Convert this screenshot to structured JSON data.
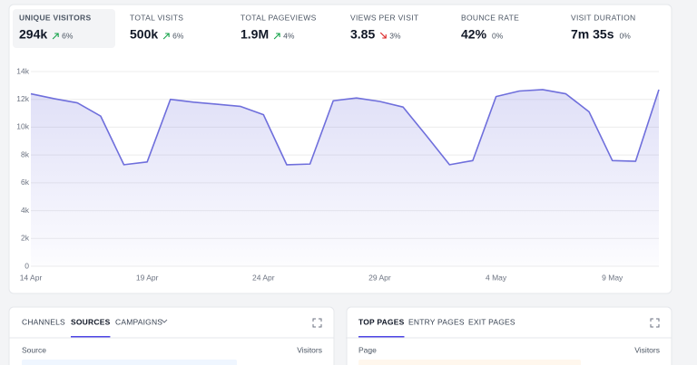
{
  "stats": [
    {
      "label": "UNIQUE VISITORS",
      "value": "294k",
      "change": "6%",
      "trend": "up"
    },
    {
      "label": "TOTAL VISITS",
      "value": "500k",
      "change": "6%",
      "trend": "up"
    },
    {
      "label": "TOTAL PAGEVIEWS",
      "value": "1.9M",
      "change": "4%",
      "trend": "up"
    },
    {
      "label": "VIEWS PER VISIT",
      "value": "3.85",
      "change": "3%",
      "trend": "down"
    },
    {
      "label": "BOUNCE RATE",
      "value": "42%",
      "change": "0%",
      "trend": "none"
    },
    {
      "label": "VISIT DURATION",
      "value": "7m 35s",
      "change": "0%",
      "trend": "none"
    }
  ],
  "chart_data": {
    "type": "line",
    "categories": [
      "14 Apr",
      null,
      null,
      null,
      null,
      "19 Apr",
      null,
      null,
      null,
      null,
      "24 Apr",
      null,
      null,
      null,
      null,
      "29 Apr",
      null,
      null,
      null,
      null,
      "4 May",
      null,
      null,
      null,
      null,
      "9 May",
      null,
      null
    ],
    "values": [
      12400,
      12050,
      11750,
      10800,
      7300,
      7500,
      12000,
      11800,
      11650,
      11500,
      10900,
      7300,
      7350,
      11900,
      12100,
      11850,
      11450,
      9400,
      7300,
      7600,
      12200,
      12600,
      12700,
      12400,
      11100,
      7600,
      7550,
      12700
    ],
    "color": "#6f6fdc",
    "fill": true,
    "ylim": [
      0,
      14000
    ],
    "yticks": [
      0,
      {
        "value": 2000,
        "label": "2k"
      },
      {
        "value": 4000,
        "label": "4k"
      },
      {
        "value": 6000,
        "label": "6k"
      },
      {
        "value": 8000,
        "label": "8k"
      },
      {
        "value": 10000,
        "label": "10k"
      },
      {
        "value": 12000,
        "label": "12k"
      },
      {
        "value": 14000,
        "label": "14k"
      }
    ],
    "grid": true
  },
  "panels": [
    {
      "tabs": [
        "CHANNELS",
        "SOURCES",
        "CAMPAIGNS"
      ],
      "active": 1,
      "columns": [
        "Source",
        "Visitors"
      ],
      "bar_color": "#eff6ff"
    },
    {
      "tabs": [
        "TOP PAGES",
        "ENTRY PAGES",
        "EXIT PAGES"
      ],
      "active": 0,
      "columns": [
        "Page",
        "Visitors"
      ],
      "bar_color": "#fff7ed"
    }
  ]
}
